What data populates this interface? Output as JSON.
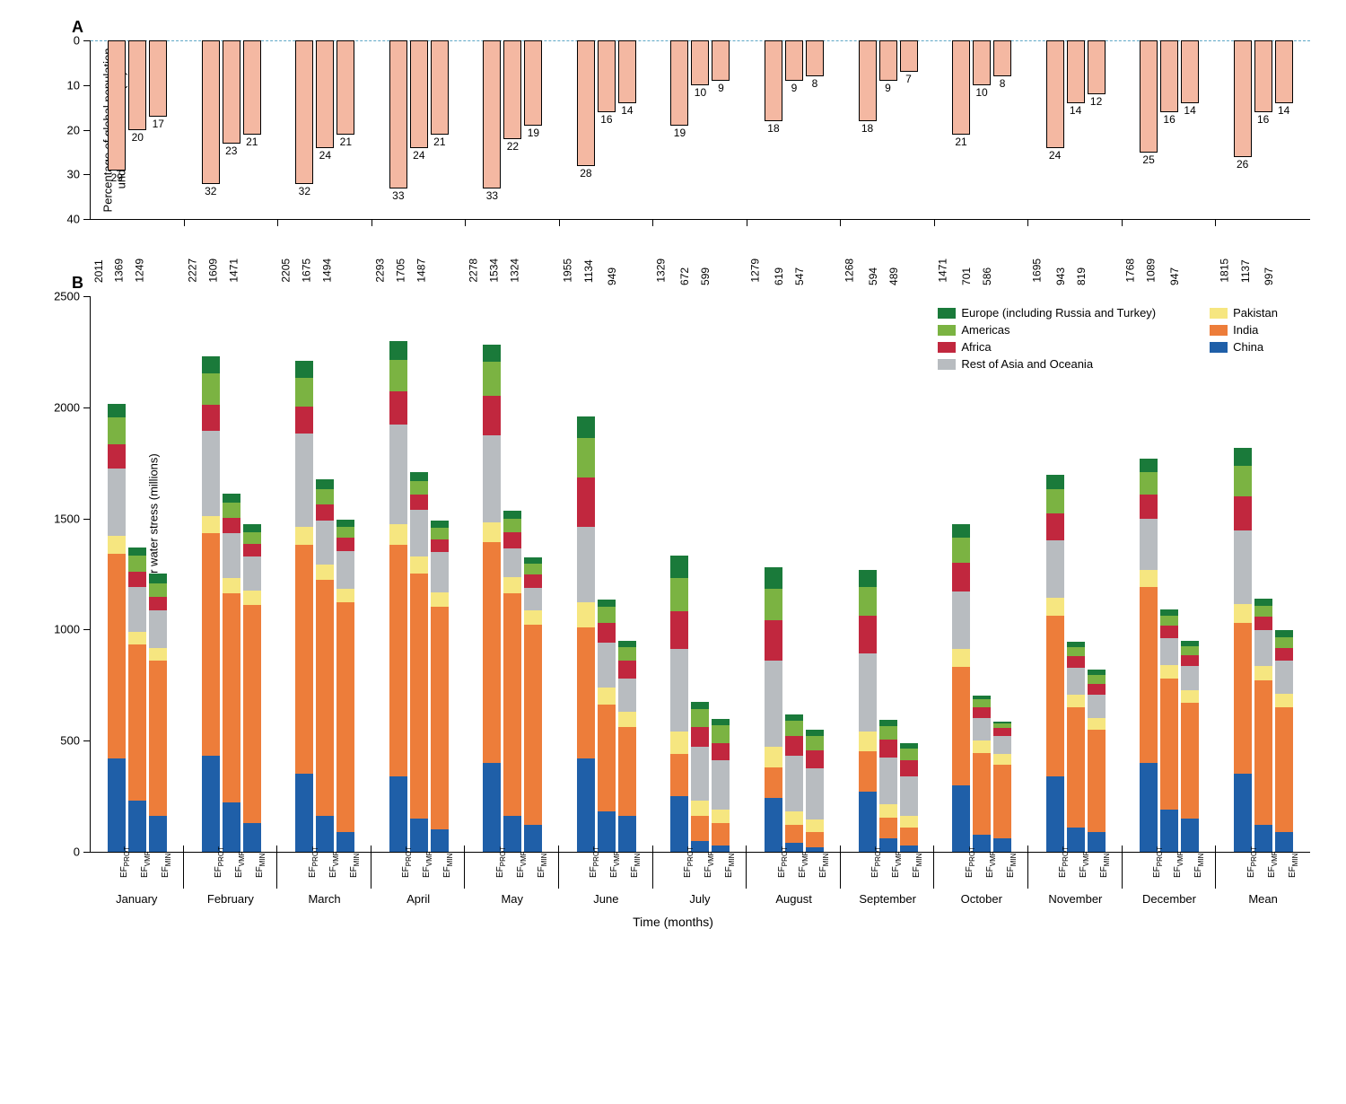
{
  "panelA": {
    "label": "A",
    "type": "bar",
    "y_title": "Percentage of global population\nunder water stress (%)",
    "ylim": [
      0,
      40
    ],
    "ytick_step": 10,
    "bar_color": "#f4b8a2",
    "bar_border": "#000000",
    "zero_line_color": "#5fa8c7",
    "background_color": "#ffffff",
    "sub_categories": [
      "EF_PROT",
      "EF_VMF",
      "EF_MIN"
    ],
    "months": [
      "January",
      "February",
      "March",
      "April",
      "May",
      "June",
      "July",
      "August",
      "September",
      "October",
      "November",
      "December",
      "Mean"
    ],
    "values": [
      [
        29,
        20,
        17
      ],
      [
        32,
        23,
        21
      ],
      [
        32,
        24,
        21
      ],
      [
        33,
        24,
        21
      ],
      [
        33,
        22,
        19
      ],
      [
        28,
        16,
        14
      ],
      [
        19,
        10,
        9
      ],
      [
        18,
        9,
        8
      ],
      [
        18,
        9,
        7
      ],
      [
        21,
        10,
        8
      ],
      [
        24,
        14,
        12
      ],
      [
        25,
        16,
        14
      ],
      [
        26,
        16,
        14
      ]
    ],
    "label_fontsize": 12
  },
  "panelB": {
    "label": "B",
    "type": "stacked-bar",
    "y_title": "Number of people under water stress (millions)",
    "ylim": [
      0,
      2500
    ],
    "ytick_step": 500,
    "x_title": "Time (months)",
    "sub_categories": [
      "EF_PROT",
      "EF_VMF",
      "EF_MIN"
    ],
    "sub_category_display": [
      "EF<sub>PROT</sub>",
      "EF<sub>VMF</sub>",
      "EF<sub>MIN</sub>"
    ],
    "months": [
      "January",
      "February",
      "March",
      "April",
      "May",
      "June",
      "July",
      "August",
      "September",
      "October",
      "November",
      "December",
      "Mean"
    ],
    "legend": [
      {
        "name": "Europe (including Russia and Turkey)",
        "color": "#1a7a3a"
      },
      {
        "name": "Pakistan",
        "color": "#f6e680"
      },
      {
        "name": "Americas",
        "color": "#7bb342"
      },
      {
        "name": "India",
        "color": "#ed7d3a"
      },
      {
        "name": "Africa",
        "color": "#c1273e"
      },
      {
        "name": "China",
        "color": "#1f5fa8"
      },
      {
        "name": "Rest of Asia and Oceania",
        "color": "#b8bcc0"
      }
    ],
    "stack_order": [
      "China",
      "India",
      "Pakistan",
      "Rest of Asia and Oceania",
      "Africa",
      "Americas",
      "Europe (including Russia and Turkey)"
    ],
    "stack_colors": {
      "China": "#1f5fa8",
      "India": "#ed7d3a",
      "Pakistan": "#f6e680",
      "Rest of Asia and Oceania": "#b8bcc0",
      "Africa": "#c1273e",
      "Americas": "#7bb342",
      "Europe (including Russia and Turkey)": "#1a7a3a"
    },
    "totals": [
      [
        2011,
        1369,
        1249
      ],
      [
        2227,
        1609,
        1471
      ],
      [
        2205,
        1675,
        1494
      ],
      [
        2293,
        1705,
        1487
      ],
      [
        2278,
        1534,
        1324
      ],
      [
        1955,
        1134,
        949
      ],
      [
        1329,
        672,
        599
      ],
      [
        1279,
        619,
        547
      ],
      [
        1268,
        594,
        489
      ],
      [
        1471,
        701,
        586
      ],
      [
        1695,
        943,
        819
      ],
      [
        1768,
        1089,
        947
      ],
      [
        1815,
        1137,
        997
      ]
    ],
    "stacks": [
      [
        [
          420,
          920,
          80,
          300,
          110,
          120,
          61
        ],
        [
          230,
          700,
          60,
          200,
          70,
          70,
          39
        ],
        [
          160,
          700,
          55,
          170,
          60,
          60,
          44
        ]
      ],
      [
        [
          430,
          1000,
          80,
          380,
          120,
          140,
          77
        ],
        [
          220,
          940,
          70,
          200,
          70,
          70,
          39
        ],
        [
          130,
          980,
          65,
          150,
          60,
          50,
          36
        ]
      ],
      [
        [
          350,
          1030,
          80,
          420,
          120,
          130,
          75
        ],
        [
          160,
          1060,
          70,
          200,
          70,
          70,
          45
        ],
        [
          90,
          1030,
          60,
          170,
          60,
          50,
          34
        ]
      ],
      [
        [
          340,
          1040,
          90,
          450,
          150,
          140,
          83
        ],
        [
          150,
          1100,
          75,
          210,
          70,
          60,
          40
        ],
        [
          100,
          1000,
          65,
          180,
          60,
          50,
          32
        ]
      ],
      [
        [
          400,
          990,
          90,
          390,
          180,
          150,
          78
        ],
        [
          160,
          1000,
          75,
          130,
          70,
          60,
          39
        ],
        [
          120,
          900,
          65,
          100,
          60,
          50,
          29
        ]
      ],
      [
        [
          420,
          590,
          110,
          340,
          220,
          180,
          95
        ],
        [
          180,
          480,
          80,
          200,
          90,
          70,
          34
        ],
        [
          160,
          400,
          70,
          150,
          80,
          60,
          29
        ]
      ],
      [
        [
          250,
          190,
          100,
          370,
          170,
          150,
          99
        ],
        [
          50,
          110,
          70,
          240,
          90,
          80,
          32
        ],
        [
          30,
          100,
          60,
          220,
          80,
          80,
          29
        ]
      ],
      [
        [
          240,
          140,
          90,
          390,
          180,
          140,
          99
        ],
        [
          40,
          80,
          60,
          250,
          90,
          70,
          29
        ],
        [
          20,
          70,
          55,
          230,
          80,
          65,
          27
        ]
      ],
      [
        [
          270,
          180,
          90,
          350,
          170,
          130,
          78
        ],
        [
          60,
          95,
          60,
          210,
          80,
          60,
          29
        ],
        [
          30,
          80,
          50,
          180,
          70,
          55,
          24
        ]
      ],
      [
        [
          300,
          530,
          80,
          260,
          130,
          110,
          61
        ],
        [
          75,
          370,
          55,
          100,
          50,
          35,
          16
        ],
        [
          60,
          330,
          50,
          80,
          35,
          20,
          11
        ]
      ],
      [
        [
          340,
          720,
          80,
          260,
          120,
          110,
          65
        ],
        [
          110,
          540,
          55,
          120,
          55,
          40,
          23
        ],
        [
          90,
          460,
          50,
          105,
          50,
          40,
          24
        ]
      ],
      [
        [
          400,
          790,
          75,
          230,
          110,
          100,
          63
        ],
        [
          190,
          590,
          60,
          120,
          55,
          45,
          29
        ],
        [
          150,
          520,
          55,
          110,
          50,
          40,
          22
        ]
      ],
      [
        [
          350,
          680,
          85,
          330,
          150,
          140,
          80
        ],
        [
          120,
          650,
          65,
          160,
          60,
          50,
          32
        ],
        [
          90,
          560,
          60,
          150,
          55,
          50,
          32
        ]
      ]
    ],
    "label_fontsize": 12
  }
}
